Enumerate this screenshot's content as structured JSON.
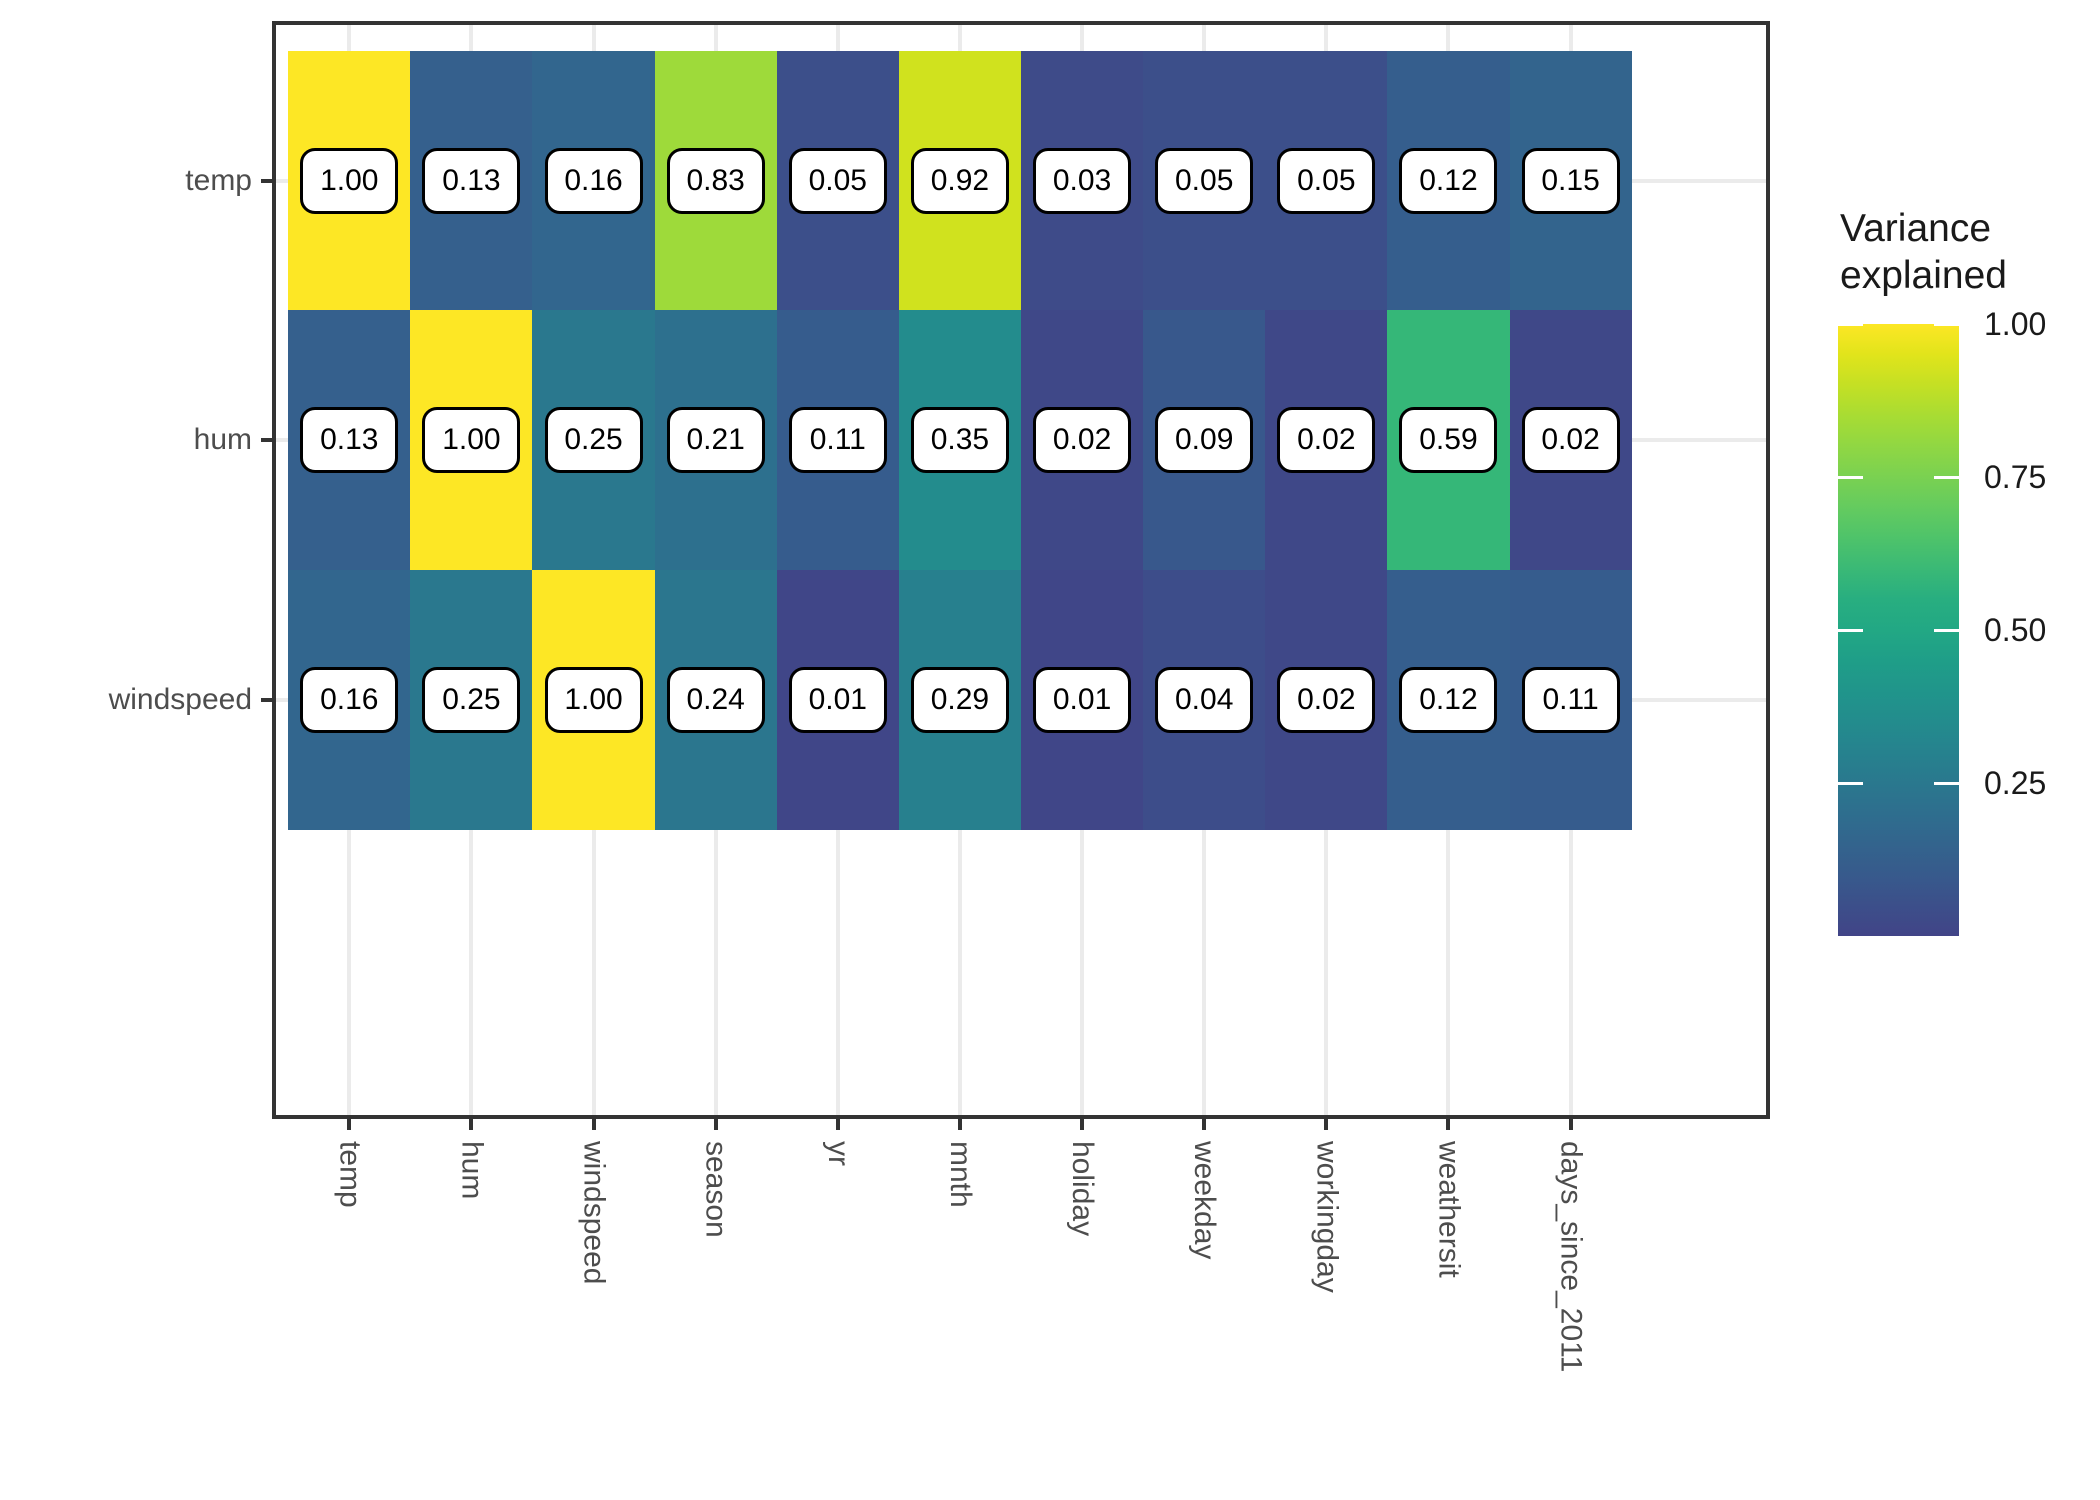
{
  "chart_data": {
    "type": "heatmap",
    "rows": [
      "temp",
      "hum",
      "windspeed"
    ],
    "columns": [
      "temp",
      "hum",
      "windspeed",
      "season",
      "yr",
      "mnth",
      "holiday",
      "weekday",
      "workingday",
      "weathersit",
      "days_since_2011"
    ],
    "values": [
      [
        1.0,
        0.13,
        0.16,
        0.83,
        0.05,
        0.92,
        0.03,
        0.05,
        0.05,
        0.12,
        0.15
      ],
      [
        0.13,
        1.0,
        0.25,
        0.21,
        0.11,
        0.35,
        0.02,
        0.09,
        0.02,
        0.59,
        0.02
      ],
      [
        0.16,
        0.25,
        1.0,
        0.24,
        0.01,
        0.29,
        0.01,
        0.04,
        0.02,
        0.12,
        0.11
      ]
    ],
    "value_decimals": 2,
    "legend_title": "Variance\nexplained",
    "legend_ticks": [
      1.0,
      0.75,
      0.5,
      0.25
    ],
    "legend_range": [
      0,
      1
    ],
    "legend_position": "right",
    "colormap": "viridis",
    "grid": true,
    "xlabel": "",
    "ylabel": "",
    "title": ""
  },
  "legend": {
    "title": "Variance\nexplained"
  },
  "colors": {
    "background": "#ffffff",
    "panel_border": "#333333",
    "axis_text": "#4d4d4d",
    "tick_mark": "#333333",
    "gridline": "#ebebeb",
    "cell_label_bg": "#ffffff",
    "cell_label_border": "#000000",
    "cell_label_text": "#000000",
    "legend_text": "#1a1a1a",
    "viridis_begin": 0.2,
    "viridis_end": 1.0,
    "viridis_stops": [
      "#440154",
      "#46085c",
      "#482878",
      "#443983",
      "#414487",
      "#3b528b",
      "#355f8d",
      "#2f6c8e",
      "#2a788e",
      "#25848e",
      "#21918c",
      "#1e9c89",
      "#22a884",
      "#2ab07f",
      "#44bf70",
      "#5ec962",
      "#7ad151",
      "#95d840",
      "#b5de2b",
      "#dae319",
      "#fde725"
    ]
  }
}
